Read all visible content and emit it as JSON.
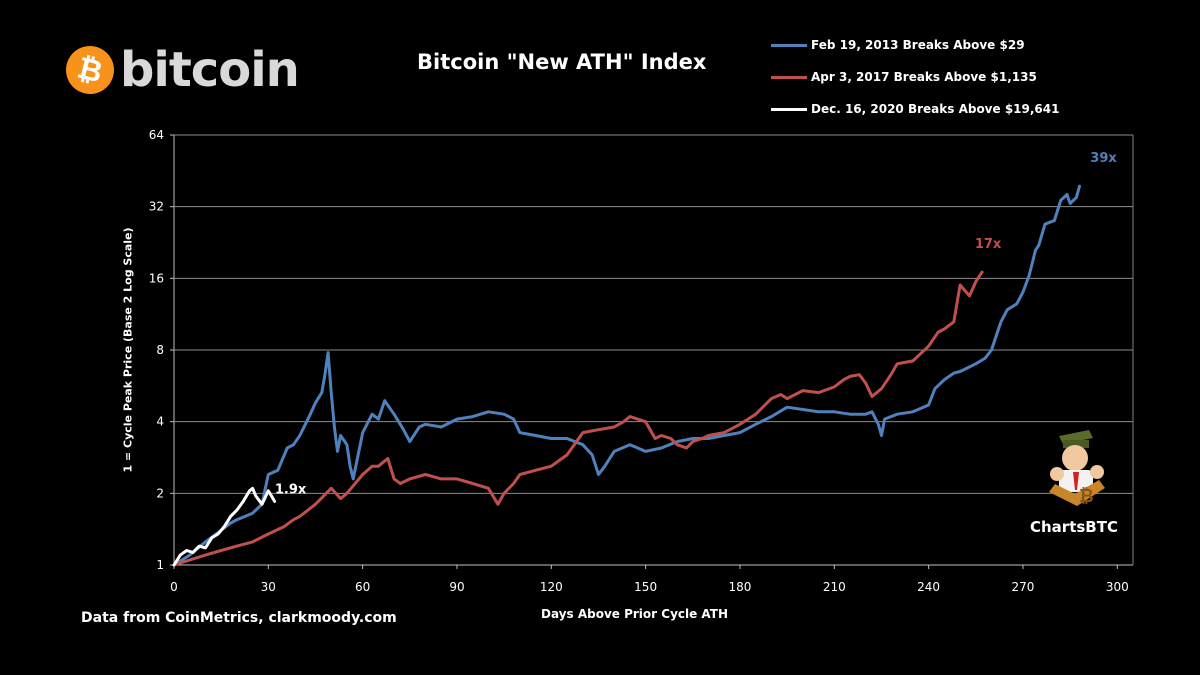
{
  "logo": {
    "symbol": "₿",
    "word": "bitcoin"
  },
  "chart_data": {
    "type": "line",
    "title": "Bitcoin \"New ATH\" Index",
    "xlabel": "Days Above Prior Cycle ATH",
    "ylabel": "1 = Cycle Peak Price (Base 2 Log Scale)",
    "y_scale": "log2",
    "xlim": [
      0,
      305
    ],
    "ylim": [
      1,
      64
    ],
    "x_ticks": [
      "0",
      "30",
      "60",
      "90",
      "120",
      "150",
      "180",
      "210",
      "240",
      "270",
      "300"
    ],
    "y_ticks": [
      "1",
      "2",
      "4",
      "8",
      "16",
      "32",
      "64"
    ],
    "grid": "horizontal",
    "legend_position": "top-right",
    "series": [
      {
        "name": "Feb 19, 2013 Breaks Above $29",
        "color": "#4f81bd",
        "end_label": "39x",
        "x": [
          0,
          5,
          10,
          15,
          18,
          20,
          25,
          28,
          30,
          33,
          36,
          38,
          40,
          43,
          45,
          47,
          48,
          49,
          50,
          51,
          52,
          53,
          55,
          56,
          57,
          60,
          63,
          65,
          67,
          70,
          73,
          75,
          78,
          80,
          85,
          90,
          95,
          100,
          105,
          108,
          110,
          115,
          120,
          125,
          130,
          133,
          135,
          137,
          140,
          145,
          150,
          155,
          160,
          165,
          170,
          175,
          180,
          185,
          190,
          195,
          200,
          205,
          210,
          215,
          220,
          222,
          224,
          225,
          226,
          230,
          235,
          240,
          242,
          245,
          248,
          250,
          255,
          258,
          260,
          263,
          265,
          268,
          270,
          272,
          274,
          275,
          277,
          280,
          282,
          284,
          285,
          287,
          288
        ],
        "y": [
          1,
          1.1,
          1.25,
          1.4,
          1.5,
          1.55,
          1.65,
          1.8,
          2.4,
          2.5,
          3.1,
          3.2,
          3.5,
          4.2,
          4.8,
          5.3,
          6.3,
          7.8,
          5.3,
          3.8,
          3.0,
          3.5,
          3.2,
          2.6,
          2.3,
          3.6,
          4.3,
          4.1,
          4.9,
          4.3,
          3.7,
          3.3,
          3.8,
          3.9,
          3.8,
          4.1,
          4.2,
          4.4,
          4.3,
          4.1,
          3.6,
          3.5,
          3.4,
          3.4,
          3.2,
          2.9,
          2.4,
          2.6,
          3.0,
          3.2,
          3.0,
          3.1,
          3.3,
          3.4,
          3.4,
          3.5,
          3.6,
          3.9,
          4.2,
          4.6,
          4.5,
          4.4,
          4.4,
          4.3,
          4.3,
          4.4,
          3.9,
          3.5,
          4.1,
          4.3,
          4.4,
          4.7,
          5.5,
          6.0,
          6.4,
          6.5,
          7.0,
          7.4,
          8.0,
          10.5,
          11.8,
          12.5,
          14.0,
          16.5,
          21.0,
          22.0,
          27.0,
          28.0,
          34.0,
          36.0,
          33.0,
          35.0,
          39.0
        ]
      },
      {
        "name": "Apr 3, 2017 Breaks Above $1,135",
        "color": "#c0504d",
        "end_label": "17x",
        "x": [
          0,
          5,
          10,
          15,
          20,
          25,
          30,
          35,
          38,
          40,
          45,
          50,
          53,
          55,
          60,
          63,
          65,
          68,
          70,
          72,
          75,
          80,
          85,
          90,
          95,
          100,
          103,
          105,
          108,
          110,
          115,
          120,
          125,
          128,
          130,
          135,
          140,
          143,
          145,
          150,
          153,
          155,
          158,
          160,
          163,
          165,
          168,
          170,
          175,
          180,
          185,
          190,
          193,
          195,
          200,
          205,
          210,
          213,
          215,
          218,
          220,
          222,
          225,
          228,
          230,
          235,
          240,
          243,
          245,
          248,
          250,
          253,
          255,
          257
        ],
        "y": [
          1,
          1.05,
          1.1,
          1.15,
          1.2,
          1.25,
          1.35,
          1.45,
          1.55,
          1.6,
          1.8,
          2.1,
          1.9,
          2.0,
          2.4,
          2.6,
          2.6,
          2.8,
          2.3,
          2.2,
          2.3,
          2.4,
          2.3,
          2.3,
          2.2,
          2.1,
          1.8,
          2.0,
          2.2,
          2.4,
          2.5,
          2.6,
          2.9,
          3.3,
          3.6,
          3.7,
          3.8,
          4.0,
          4.2,
          4.0,
          3.4,
          3.5,
          3.4,
          3.2,
          3.1,
          3.3,
          3.4,
          3.5,
          3.6,
          3.9,
          4.3,
          5.0,
          5.2,
          5.0,
          5.4,
          5.3,
          5.6,
          6.0,
          6.2,
          6.3,
          5.8,
          5.1,
          5.5,
          6.3,
          7.0,
          7.2,
          8.3,
          9.5,
          9.8,
          10.5,
          15.0,
          13.5,
          15.5,
          17.0
        ]
      },
      {
        "name": "Dec. 16, 2020 Breaks Above $19,641",
        "color": "#ffffff",
        "end_label": "1.9x",
        "x": [
          0,
          2,
          4,
          6,
          8,
          10,
          12,
          14,
          16,
          18,
          20,
          22,
          24,
          25,
          26,
          28,
          30,
          31,
          32
        ],
        "y": [
          1,
          1.1,
          1.15,
          1.13,
          1.2,
          1.18,
          1.3,
          1.35,
          1.45,
          1.6,
          1.7,
          1.85,
          2.05,
          2.1,
          1.95,
          1.8,
          2.05,
          1.95,
          1.85
        ]
      }
    ]
  },
  "source_note": "Data from CoinMetrics, clarkmoody.com",
  "badge": {
    "text": "ChartsBTC"
  }
}
